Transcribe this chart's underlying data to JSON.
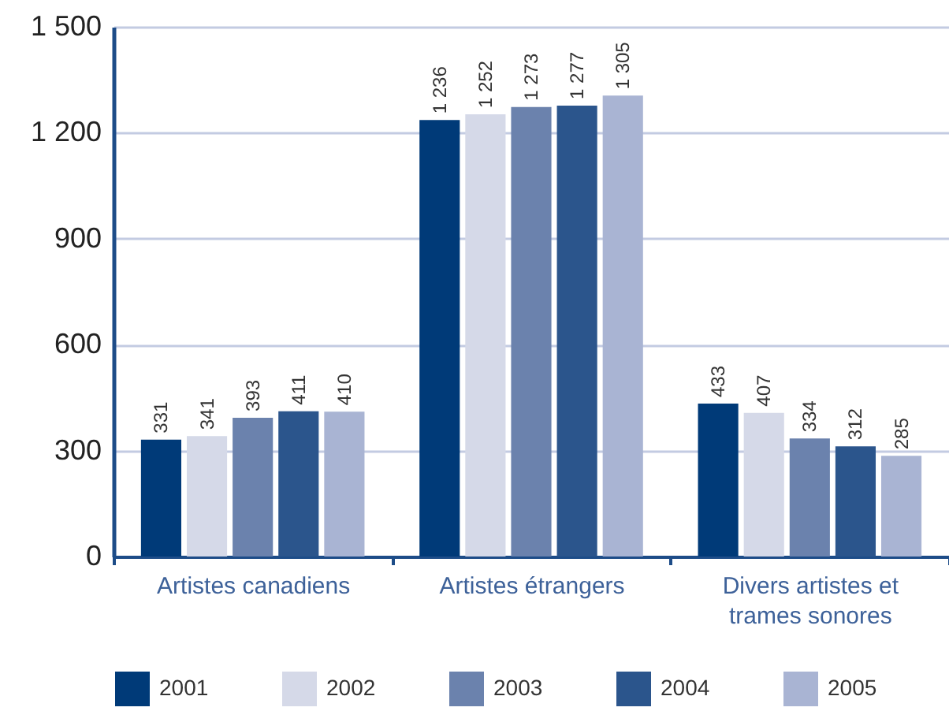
{
  "chart_data": {
    "type": "bar",
    "categories": [
      "Artistes canadiens",
      "Artistes étrangers",
      "Divers artistes et trames sonores"
    ],
    "series": [
      {
        "name": "2001",
        "color": "#003a78",
        "values": [
          331,
          1236,
          433
        ],
        "value_labels": [
          "331",
          "1 236",
          "433"
        ]
      },
      {
        "name": "2002",
        "color": "#d5d9e8",
        "values": [
          341,
          1252,
          407
        ],
        "value_labels": [
          "341",
          "1 252",
          "407"
        ]
      },
      {
        "name": "2003",
        "color": "#6b82ad",
        "values": [
          393,
          1273,
          334
        ],
        "value_labels": [
          "393",
          "1 273",
          "334"
        ]
      },
      {
        "name": "2004",
        "color": "#2b558c",
        "values": [
          411,
          1277,
          312
        ],
        "value_labels": [
          "411",
          "1 277",
          "312"
        ]
      },
      {
        "name": "2005",
        "color": "#a9b4d3",
        "values": [
          410,
          1305,
          285
        ],
        "value_labels": [
          "410",
          "1 305",
          "285"
        ]
      }
    ],
    "ylim": [
      0,
      1500
    ],
    "yticks": [
      0,
      300,
      600,
      900,
      {
        "value": 1200,
        "label": "1 200"
      },
      {
        "value": 1500,
        "label": "1 500"
      }
    ],
    "grid": "y",
    "legend": "bottom"
  }
}
